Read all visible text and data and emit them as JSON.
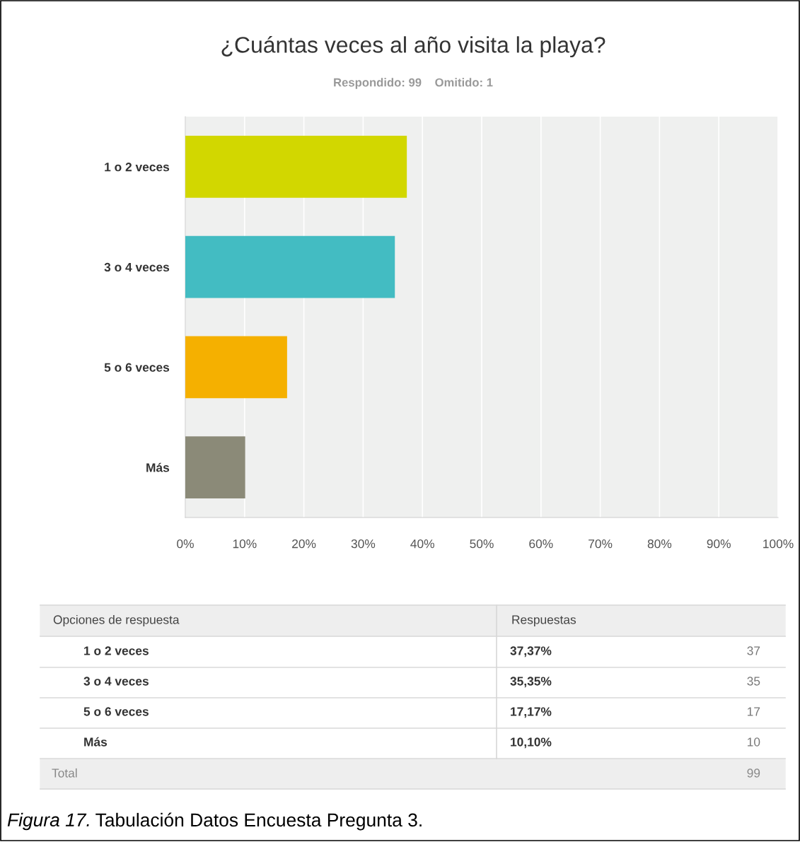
{
  "chart_data": {
    "type": "bar",
    "orientation": "horizontal",
    "title": "¿Cuántas veces al año visita la playa?",
    "subtitle": "Respondido: 99    Omitido: 1",
    "categories": [
      "1 o 2 veces",
      "3 o 4 veces",
      "5 o 6 veces",
      "Más"
    ],
    "values": [
      37.37,
      35.35,
      17.17,
      10.1
    ],
    "colors": [
      "#d2d700",
      "#43bcc2",
      "#f5b000",
      "#8b8a78"
    ],
    "xlim": [
      0,
      100
    ],
    "xticks": [
      {
        "value": 0,
        "label": "0%"
      },
      {
        "value": 10,
        "label": "10%"
      },
      {
        "value": 20,
        "label": "20%"
      },
      {
        "value": 30,
        "label": "30%"
      },
      {
        "value": 40,
        "label": "40%"
      },
      {
        "value": 50,
        "label": "50%"
      },
      {
        "value": 60,
        "label": "60%"
      },
      {
        "value": 70,
        "label": "70%"
      },
      {
        "value": 80,
        "label": "80%"
      },
      {
        "value": 90,
        "label": "90%"
      },
      {
        "value": 100,
        "label": "100%"
      }
    ],
    "grid": "x",
    "legend": false,
    "annotations": [
      "Opciones de respuesta",
      "Respuestas",
      "37",
      "35",
      "17",
      "10",
      "Total",
      "99",
      "Figura 17.",
      "Tabulación Datos Encuesta Pregunta 3.",
      "37,37%",
      "35,35%",
      "17,17%",
      "10,10%"
    ]
  }
}
